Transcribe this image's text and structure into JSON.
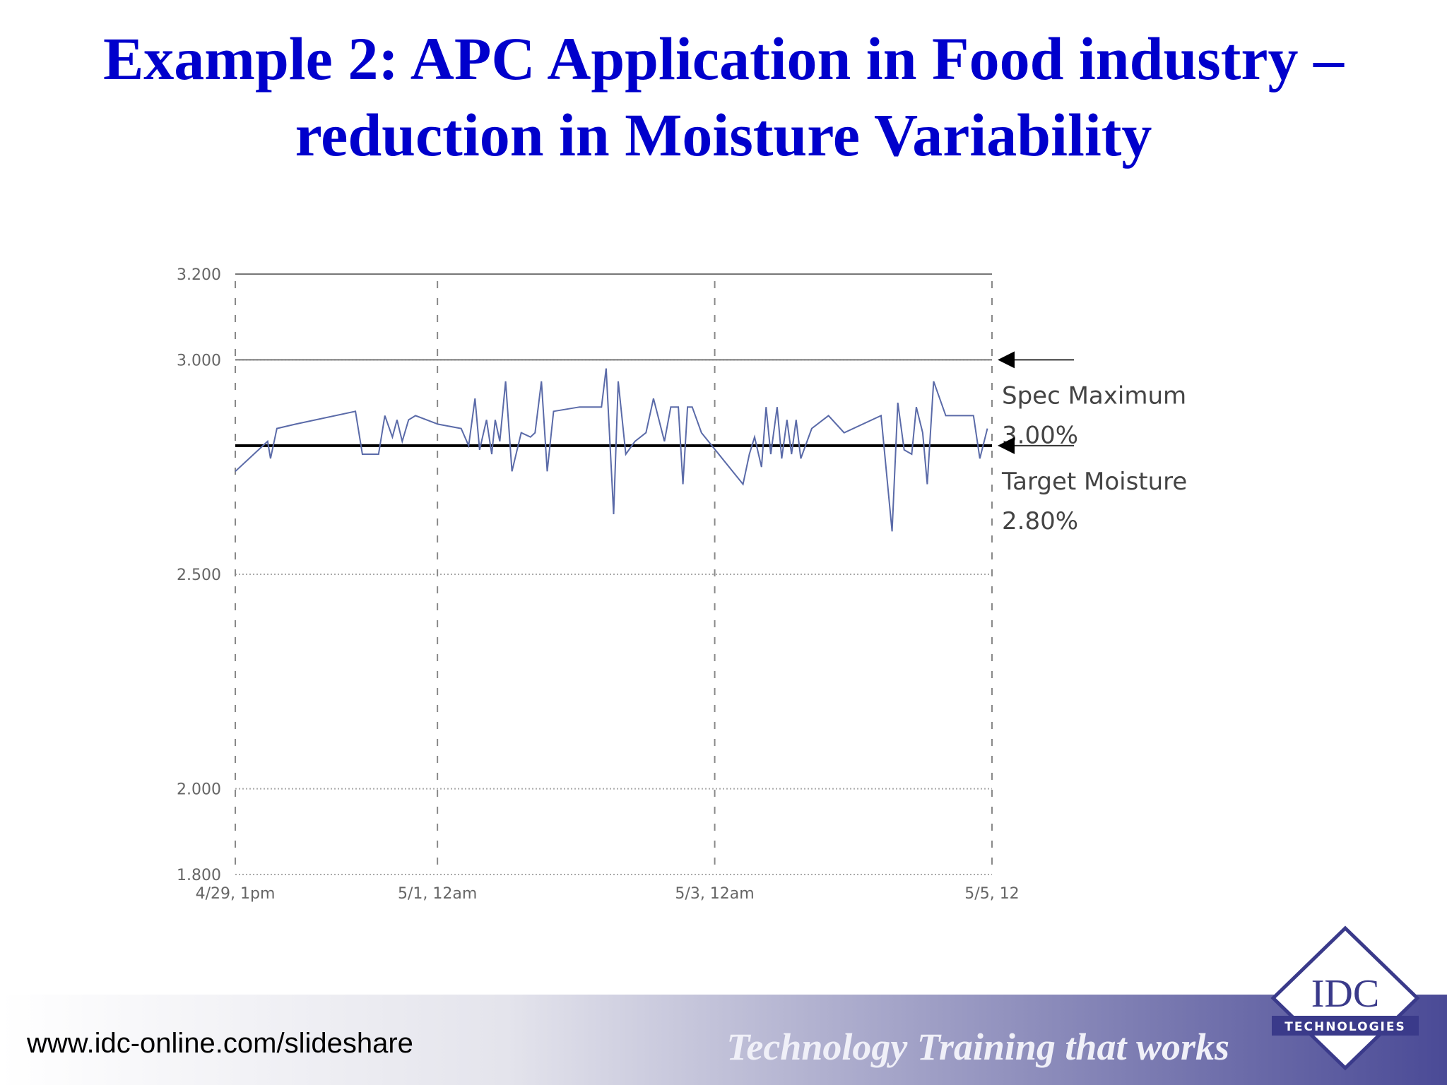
{
  "slide": {
    "title_lines": [
      "Example 2: APC Application in Food industry –",
      "reduction in Moisture Variability"
    ],
    "footer": {
      "url": "www.idc-online.com/slideshare",
      "tagline": "Technology Training that works"
    },
    "logo": {
      "name": "IDC",
      "sub": "TECHNOLOGIES"
    }
  },
  "chart_data": {
    "type": "line",
    "x": [
      0,
      2.4,
      5.6,
      6.1,
      7.2,
      10.4,
      20.8,
      22.0,
      24.8,
      25.9,
      27.2,
      28.0,
      28.9,
      30.0,
      31.2,
      35.1,
      39.1,
      40.4,
      41.5,
      42.3,
      43.5,
      44.4,
      45.0,
      45.8,
      46.8,
      47.9,
      49.5,
      51.1,
      51.9,
      53.0,
      54.0,
      55.1,
      59.6,
      63.4,
      64.2,
      65.5,
      66.3,
      67.6,
      69.2,
      71.1,
      72.4,
      74.3,
      75.4,
      76.7,
      77.5,
      78.3,
      79.1,
      80.7,
      87.9,
      89.0,
      89.9,
      91.1,
      91.9,
      92.7,
      93.8,
      94.6,
      95.5,
      96.3,
      97.1,
      97.9,
      99.8,
      102.7,
      105.4,
      111.8,
      113.7,
      114.7,
      115.8,
      117.1,
      117.9,
      119.0,
      119.8,
      120.9,
      123.0,
      124.3,
      125.4,
      127.8,
      128.9,
      130.2
    ],
    "values": [
      2.74,
      2.77,
      2.81,
      2.77,
      2.84,
      2.85,
      2.88,
      2.78,
      2.78,
      2.87,
      2.82,
      2.86,
      2.81,
      2.86,
      2.87,
      2.85,
      2.84,
      2.8,
      2.91,
      2.79,
      2.86,
      2.78,
      2.86,
      2.81,
      2.95,
      2.74,
      2.83,
      2.82,
      2.83,
      2.95,
      2.74,
      2.88,
      2.89,
      2.89,
      2.98,
      2.64,
      2.95,
      2.78,
      2.81,
      2.83,
      2.91,
      2.81,
      2.89,
      2.89,
      2.71,
      2.89,
      2.89,
      2.83,
      2.71,
      2.78,
      2.82,
      2.75,
      2.89,
      2.78,
      2.89,
      2.77,
      2.86,
      2.78,
      2.86,
      2.77,
      2.84,
      2.87,
      2.83,
      2.87,
      2.6,
      2.9,
      2.79,
      2.78,
      2.89,
      2.83,
      2.71,
      2.95,
      2.87,
      2.87,
      2.87,
      2.87,
      2.77,
      2.84
    ],
    "color": "#5a6aa8",
    "xlim": [
      0,
      131
    ],
    "xticks": [
      {
        "value": 0,
        "label": "4/29, 1pm"
      },
      {
        "value": 35,
        "label": "5/1, 12am"
      },
      {
        "value": 83,
        "label": "5/3, 12am"
      },
      {
        "value": 131,
        "label": "5/5, 12"
      }
    ],
    "ylim": [
      1.8,
      3.2
    ],
    "yticks": [
      {
        "value": 1.8,
        "label": "1.800"
      },
      {
        "value": 2.0,
        "label": "2.000"
      },
      {
        "value": 2.5,
        "label": "2.500"
      },
      {
        "value": 3.0,
        "label": "3.000"
      },
      {
        "value": 3.2,
        "label": "3.200"
      }
    ],
    "grid": true,
    "annotations": [
      {
        "label": "Spec Maximum",
        "value_label": "3.00%",
        "value": 3.0
      },
      {
        "label": "Target Moisture",
        "value_label": "2.80%",
        "value": 2.8
      }
    ]
  }
}
